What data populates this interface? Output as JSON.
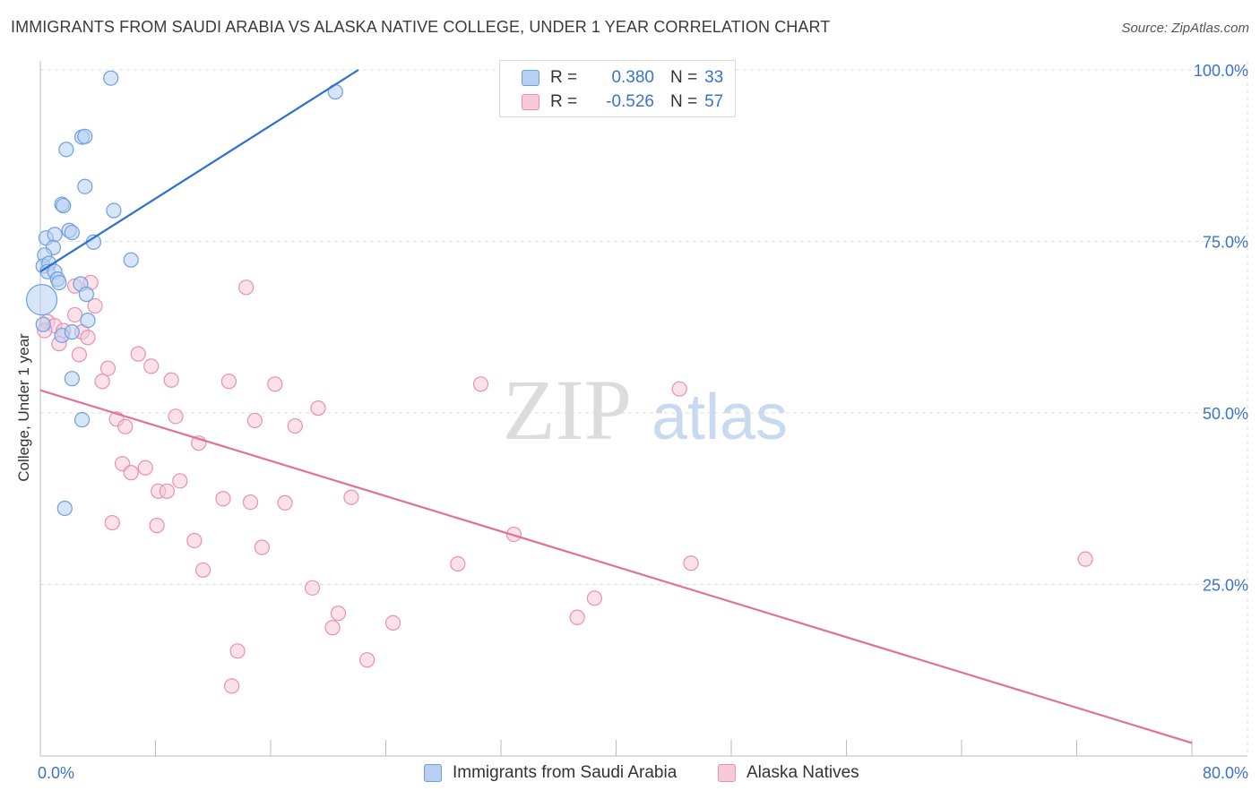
{
  "header": {
    "title": "IMMIGRANTS FROM SAUDI ARABIA VS ALASKA NATIVE COLLEGE, UNDER 1 YEAR CORRELATION CHART",
    "source": "Source: ZipAtlas.com"
  },
  "watermark": {
    "zip": "ZIP",
    "atlas": "atlas"
  },
  "legend": {
    "series1": {
      "r_label": "R =",
      "r_value": "0.380",
      "n_label": "N =",
      "n_value": "33"
    },
    "series2": {
      "r_label": "R =",
      "r_value": "-0.526",
      "n_label": "N =",
      "n_value": "57"
    }
  },
  "bottom_legend": {
    "series1": "Immigrants from Saudi Arabia",
    "series2": "Alaska Natives"
  },
  "colors": {
    "blue_fill": "#b7d0f2",
    "blue_stroke": "#6f9fe0",
    "blue_line": "#2f6fce",
    "pink_fill": "#f8c9d8",
    "pink_stroke": "#ec8fae",
    "pink_line": "#e0719a",
    "tick_label": "#3a74c6",
    "grid": "#dddddd"
  },
  "chart_data": {
    "type": "scatter",
    "title": "IMMIGRANTS FROM SAUDI ARABIA VS ALASKA NATIVE COLLEGE, UNDER 1 YEAR CORRELATION CHART",
    "xlabel": "",
    "ylabel": "College, Under 1 year",
    "xlim": [
      0,
      80
    ],
    "ylim": [
      0,
      100
    ],
    "x_tick_labels": [
      {
        "value": 0,
        "label": "0.0%"
      },
      {
        "value": 80,
        "label": "80.0%"
      }
    ],
    "y_tick_labels": [
      {
        "value": 100,
        "label": "100.0%"
      },
      {
        "value": 75,
        "label": "75.0%"
      },
      {
        "value": 50,
        "label": "50.0%"
      },
      {
        "value": 25,
        "label": "25.0%"
      }
    ],
    "x_minor_ticks": [
      8,
      16,
      24,
      32,
      40,
      48,
      56,
      64,
      72
    ],
    "series": [
      {
        "name": "Immigrants from Saudi Arabia",
        "R": 0.38,
        "N": 33,
        "trend": {
          "x": [
            0,
            22.1
          ],
          "y": [
            70.6,
            100
          ]
        },
        "points": [
          {
            "x": 4.9,
            "y": 98.8
          },
          {
            "x": 20.5,
            "y": 96.8
          },
          {
            "x": 2.9,
            "y": 90.2
          },
          {
            "x": 1.8,
            "y": 88.4
          },
          {
            "x": 3.1,
            "y": 90.3
          },
          {
            "x": 3.1,
            "y": 83.0
          },
          {
            "x": 1.5,
            "y": 80.4
          },
          {
            "x": 1.6,
            "y": 80.2
          },
          {
            "x": 5.1,
            "y": 79.5
          },
          {
            "x": 0.4,
            "y": 75.5
          },
          {
            "x": 1.0,
            "y": 76.0
          },
          {
            "x": 2.0,
            "y": 76.6
          },
          {
            "x": 2.2,
            "y": 76.3
          },
          {
            "x": 3.7,
            "y": 74.9
          },
          {
            "x": 0.9,
            "y": 74.1
          },
          {
            "x": 0.3,
            "y": 73.0
          },
          {
            "x": 6.3,
            "y": 72.3
          },
          {
            "x": 0.2,
            "y": 71.4
          },
          {
            "x": 0.6,
            "y": 71.8
          },
          {
            "x": 0.5,
            "y": 70.6
          },
          {
            "x": 1.0,
            "y": 70.6
          },
          {
            "x": 1.2,
            "y": 69.5
          },
          {
            "x": 1.3,
            "y": 69.0
          },
          {
            "x": 2.8,
            "y": 68.8
          },
          {
            "x": 3.2,
            "y": 67.3
          },
          {
            "x": 0.1,
            "y": 66.5
          },
          {
            "x": 3.3,
            "y": 63.5
          },
          {
            "x": 0.2,
            "y": 62.9
          },
          {
            "x": 1.5,
            "y": 61.3
          },
          {
            "x": 2.2,
            "y": 61.8
          },
          {
            "x": 2.2,
            "y": 55.0
          },
          {
            "x": 2.9,
            "y": 49.0
          },
          {
            "x": 1.7,
            "y": 36.1
          }
        ]
      },
      {
        "name": "Alaska Natives",
        "R": -0.526,
        "N": 57,
        "trend": {
          "x": [
            0,
            80
          ],
          "y": [
            53.3,
            1.9
          ]
        },
        "points": [
          {
            "x": 14.3,
            "y": 68.3
          },
          {
            "x": 3.5,
            "y": 69.0
          },
          {
            "x": 2.4,
            "y": 68.5
          },
          {
            "x": 3.8,
            "y": 65.6
          },
          {
            "x": 2.4,
            "y": 64.3
          },
          {
            "x": 0.5,
            "y": 63.3
          },
          {
            "x": 1.0,
            "y": 62.7
          },
          {
            "x": 0.3,
            "y": 62.0
          },
          {
            "x": 2.9,
            "y": 61.8
          },
          {
            "x": 3.3,
            "y": 61.0
          },
          {
            "x": 1.6,
            "y": 62.0
          },
          {
            "x": 1.3,
            "y": 60.1
          },
          {
            "x": 2.7,
            "y": 58.5
          },
          {
            "x": 6.8,
            "y": 58.6
          },
          {
            "x": 7.7,
            "y": 56.8
          },
          {
            "x": 4.7,
            "y": 56.5
          },
          {
            "x": 4.3,
            "y": 54.6
          },
          {
            "x": 9.1,
            "y": 54.8
          },
          {
            "x": 13.1,
            "y": 54.6
          },
          {
            "x": 16.3,
            "y": 54.2
          },
          {
            "x": 30.6,
            "y": 54.2
          },
          {
            "x": 44.4,
            "y": 53.5
          },
          {
            "x": 19.3,
            "y": 50.7
          },
          {
            "x": 5.3,
            "y": 49.1
          },
          {
            "x": 9.4,
            "y": 49.5
          },
          {
            "x": 14.9,
            "y": 48.9
          },
          {
            "x": 17.7,
            "y": 48.1
          },
          {
            "x": 5.9,
            "y": 48.0
          },
          {
            "x": 11.0,
            "y": 45.6
          },
          {
            "x": 5.7,
            "y": 42.6
          },
          {
            "x": 7.3,
            "y": 42.0
          },
          {
            "x": 6.3,
            "y": 41.3
          },
          {
            "x": 9.7,
            "y": 40.1
          },
          {
            "x": 8.2,
            "y": 38.6
          },
          {
            "x": 8.8,
            "y": 38.6
          },
          {
            "x": 12.7,
            "y": 37.5
          },
          {
            "x": 14.6,
            "y": 37.0
          },
          {
            "x": 17.0,
            "y": 36.9
          },
          {
            "x": 21.6,
            "y": 37.7
          },
          {
            "x": 5.0,
            "y": 34.0
          },
          {
            "x": 8.1,
            "y": 33.6
          },
          {
            "x": 32.9,
            "y": 32.3
          },
          {
            "x": 10.7,
            "y": 31.4
          },
          {
            "x": 15.4,
            "y": 30.4
          },
          {
            "x": 72.6,
            "y": 28.7
          },
          {
            "x": 29.0,
            "y": 28.0
          },
          {
            "x": 45.2,
            "y": 28.1
          },
          {
            "x": 11.3,
            "y": 27.1
          },
          {
            "x": 18.9,
            "y": 24.5
          },
          {
            "x": 38.5,
            "y": 23.0
          },
          {
            "x": 37.3,
            "y": 20.2
          },
          {
            "x": 20.7,
            "y": 20.8
          },
          {
            "x": 24.5,
            "y": 19.4
          },
          {
            "x": 20.3,
            "y": 18.7
          },
          {
            "x": 13.7,
            "y": 15.3
          },
          {
            "x": 22.7,
            "y": 14.0
          },
          {
            "x": 13.3,
            "y": 10.2
          }
        ]
      }
    ],
    "legend_position": "top-center",
    "grid": true
  }
}
